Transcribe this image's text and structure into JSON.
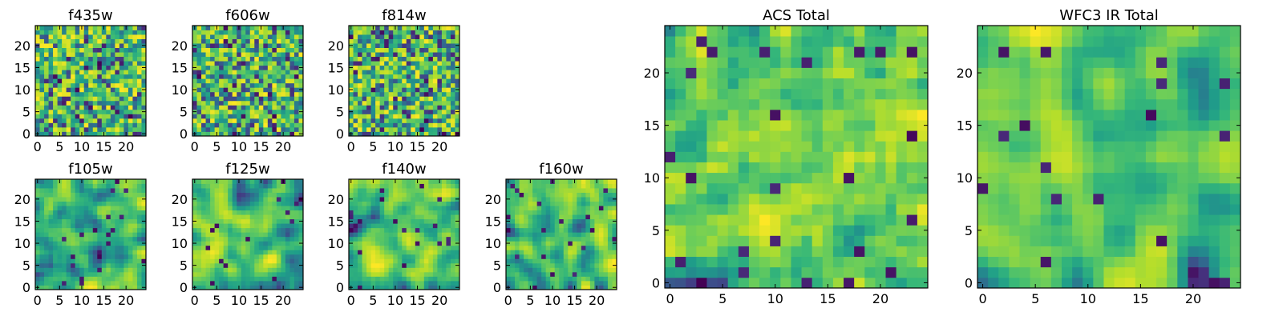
{
  "chart_data": [
    {
      "type": "heatmap",
      "title": "f435w",
      "xlim": [
        0,
        25
      ],
      "ylim": [
        0,
        25
      ],
      "xticks": [
        "0",
        "5",
        "10",
        "15",
        "20"
      ],
      "yticks": [
        "0",
        "5",
        "10",
        "15",
        "20"
      ],
      "grid": false,
      "colormap": "viridis",
      "seed": 11,
      "smooth": 0.15,
      "bias": 0.55
    },
    {
      "type": "heatmap",
      "title": "f606w",
      "xlim": [
        0,
        25
      ],
      "ylim": [
        0,
        25
      ],
      "xticks": [
        "0",
        "5",
        "10",
        "15",
        "20"
      ],
      "yticks": [
        "0",
        "5",
        "10",
        "15",
        "20"
      ],
      "grid": false,
      "colormap": "viridis",
      "seed": 23,
      "smooth": 0.15,
      "bias": 0.55
    },
    {
      "type": "heatmap",
      "title": "f814w",
      "xlim": [
        0,
        25
      ],
      "ylim": [
        0,
        25
      ],
      "xticks": [
        "0",
        "5",
        "10",
        "15",
        "20"
      ],
      "yticks": [
        "0",
        "5",
        "10",
        "15",
        "20"
      ],
      "grid": false,
      "colormap": "viridis",
      "seed": 37,
      "smooth": 0.15,
      "bias": 0.55
    },
    {
      "type": "heatmap",
      "title": "f105w",
      "xlim": [
        0,
        25
      ],
      "ylim": [
        0,
        25
      ],
      "xticks": [
        "0",
        "5",
        "10",
        "15",
        "20"
      ],
      "yticks": [
        "0",
        "5",
        "10",
        "15",
        "20"
      ],
      "grid": false,
      "colormap": "viridis",
      "seed": 41,
      "smooth": 0.6,
      "bias": 0.62
    },
    {
      "type": "heatmap",
      "title": "f125w",
      "xlim": [
        0,
        25
      ],
      "ylim": [
        0,
        25
      ],
      "xticks": [
        "0",
        "5",
        "10",
        "15",
        "20"
      ],
      "yticks": [
        "0",
        "5",
        "10",
        "15",
        "20"
      ],
      "grid": false,
      "colormap": "viridis",
      "seed": 53,
      "smooth": 0.6,
      "bias": 0.62
    },
    {
      "type": "heatmap",
      "title": "f140w",
      "xlim": [
        0,
        25
      ],
      "ylim": [
        0,
        25
      ],
      "xticks": [
        "0",
        "5",
        "10",
        "15",
        "20"
      ],
      "yticks": [
        "0",
        "5",
        "10",
        "15",
        "20"
      ],
      "grid": false,
      "colormap": "viridis",
      "seed": 67,
      "smooth": 0.6,
      "bias": 0.62
    },
    {
      "type": "heatmap",
      "title": "f160w",
      "xlim": [
        0,
        25
      ],
      "ylim": [
        0,
        25
      ],
      "xticks": [
        "0",
        "5",
        "10",
        "15",
        "20"
      ],
      "yticks": [
        "0",
        "5",
        "10",
        "15",
        "20"
      ],
      "grid": false,
      "colormap": "viridis",
      "seed": 79,
      "smooth": 0.6,
      "bias": 0.6
    },
    {
      "type": "heatmap",
      "title": "ACS Total",
      "xlim": [
        0,
        25
      ],
      "ylim": [
        0,
        25
      ],
      "xticks": [
        "0",
        "5",
        "10",
        "15",
        "20"
      ],
      "yticks": [
        "0",
        "5",
        "10",
        "15",
        "20"
      ],
      "grid": false,
      "colormap": "viridis",
      "seed": 97,
      "smooth": 0.25,
      "bias": 0.62
    },
    {
      "type": "heatmap",
      "title": "WFC3 IR Total",
      "xlim": [
        0,
        25
      ],
      "ylim": [
        0,
        25
      ],
      "xticks": [
        "0",
        "5",
        "10",
        "15",
        "20"
      ],
      "yticks": [
        "0",
        "5",
        "10",
        "15",
        "20"
      ],
      "grid": false,
      "colormap": "viridis",
      "seed": 131,
      "smooth": 0.8,
      "bias": 0.68
    }
  ]
}
